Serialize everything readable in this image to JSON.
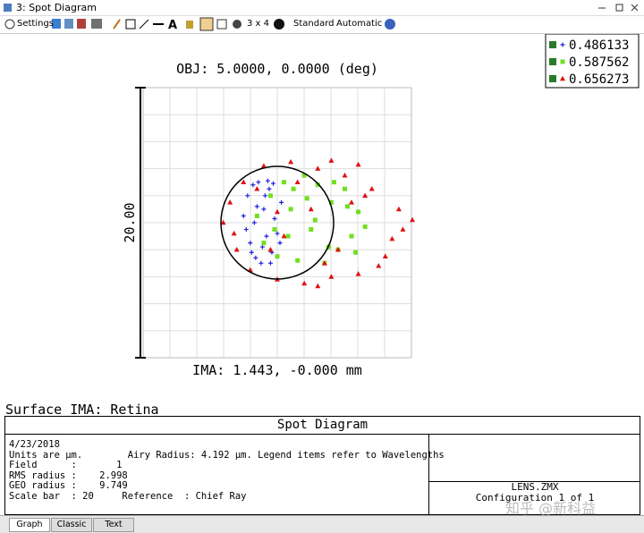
{
  "window": {
    "title": "3: Spot Diagram"
  },
  "toolbar": {
    "settings": "Settings",
    "layout": "3 x 4",
    "standard": "Standard",
    "automatic": "Automatic"
  },
  "plot": {
    "title": "OBJ: 5.0000, 0.0000 (deg)",
    "scale_label": "20.00",
    "footer": "IMA: 1.443, -0.000 mm",
    "series": [
      {
        "name": "0.486133",
        "color": "#2020e0",
        "marker": "plus",
        "x": [
          -2.5,
          -2.2,
          -2,
          -1.8,
          -1.6,
          -1.4,
          -1.2,
          -1,
          -0.8,
          -0.6,
          -0.4,
          -0.2,
          0,
          0.3,
          -2.3,
          -1.9,
          -1.5,
          -1.1,
          -0.7,
          -0.3,
          0.2,
          -1.7,
          -0.9,
          -0.5
        ],
        "y": [
          0.5,
          2,
          -1.5,
          2.8,
          -2.6,
          3,
          -3,
          1,
          -1,
          2.5,
          -2.2,
          0.3,
          -0.8,
          1.5,
          -0.5,
          -2.2,
          1.2,
          -1.8,
          3.1,
          2.9,
          -1.5,
          0,
          2,
          -3
        ]
      },
      {
        "name": "0.587562",
        "color": "#70e020",
        "marker": "square",
        "x": [
          -1.5,
          -1,
          -0.5,
          0,
          0.5,
          1,
          1.5,
          2,
          2.5,
          3,
          3.5,
          4,
          4.5,
          5,
          5.5,
          6,
          6.5,
          0.8,
          2.2,
          3.8,
          5.2,
          -0.2,
          1.2,
          2.8,
          4.2,
          5.8
        ],
        "y": [
          0.5,
          -1.5,
          2,
          -2.5,
          3,
          1,
          -2.8,
          3.5,
          -0.5,
          2.8,
          -3,
          1.5,
          -2,
          2.5,
          -1,
          0.8,
          -0.3,
          -1,
          1.8,
          -1.8,
          1.2,
          -0.5,
          2.5,
          0.2,
          3,
          -2.2
        ]
      },
      {
        "name": "0.656273",
        "color": "#e01010",
        "marker": "triangle",
        "x": [
          -4,
          -3.5,
          -3,
          -2.5,
          -2,
          -1,
          0,
          1,
          2,
          3,
          4,
          5,
          6,
          7,
          8,
          9,
          10,
          -3.2,
          -1.5,
          0.5,
          2.5,
          4.5,
          6.5,
          8.5,
          1.5,
          3.5,
          5.5,
          7.5,
          9.3,
          -0.5,
          0,
          4,
          6,
          3
        ],
        "y": [
          0,
          1.5,
          -2,
          3,
          -3.5,
          4.2,
          -4.2,
          4.5,
          -4.5,
          4,
          -4,
          3.5,
          -3.8,
          2.5,
          -2.5,
          1,
          0.2,
          -0.8,
          2.5,
          -1,
          1,
          -2,
          2,
          -1.2,
          3,
          -3,
          1.5,
          -3.2,
          -0.5,
          -2,
          0.8,
          4.6,
          4.3,
          -4.7
        ]
      }
    ]
  },
  "surface": "Surface IMA: Retina",
  "info": {
    "title": "Spot Diagram",
    "lines": [
      "4/23/2018",
      "Units are µm.        Airy Radius: 4.192 µm. Legend items refer to Wavelengths",
      "Field      :       1",
      "RMS radius :    2.998",
      "GEO radius :    9.749",
      "Scale bar  : 20     Reference  : Chief Ray"
    ],
    "file": "LENS.ZMX",
    "config": "Configuration 1 of 1"
  },
  "watermark": "知乎 @新科益",
  "tabs": [
    "Graph",
    "Classic",
    "Text"
  ]
}
